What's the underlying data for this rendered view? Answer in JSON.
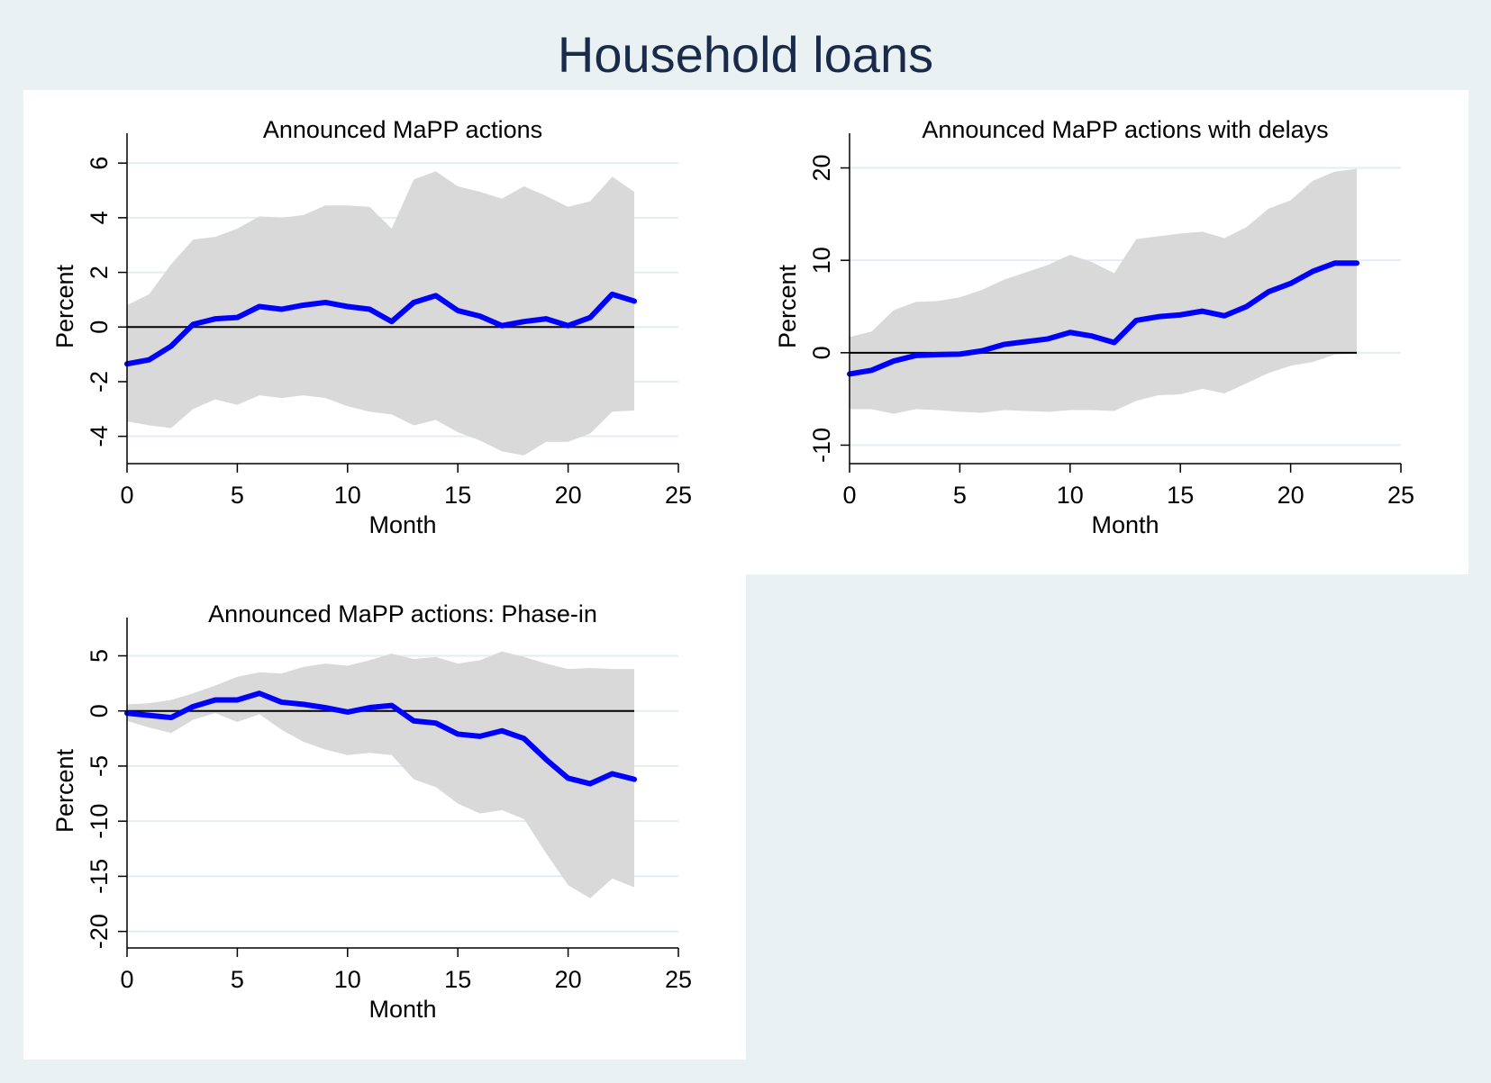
{
  "figure": {
    "title": "Household loans"
  },
  "chart_data": [
    {
      "type": "line",
      "title": "Announced MaPP actions",
      "xlabel": "Month",
      "ylabel": "Percent",
      "xlim": [
        0,
        25
      ],
      "ylim": [
        -5,
        6.5
      ],
      "xticks": [
        0,
        5,
        10,
        15,
        20,
        25
      ],
      "yticks": [
        -4,
        -2,
        0,
        2,
        4,
        6
      ],
      "ytick_labels": [
        "-4",
        "-2",
        "0",
        "2",
        "4",
        "6"
      ],
      "grid": true,
      "zero_line": true,
      "x": [
        0,
        1,
        2,
        3,
        4,
        5,
        6,
        7,
        8,
        9,
        10,
        11,
        12,
        13,
        14,
        15,
        16,
        17,
        18,
        19,
        20,
        21,
        22,
        23
      ],
      "series": [
        {
          "role": "estimate",
          "color": "#0000ff",
          "values": [
            -1.35,
            -1.2,
            -0.7,
            0.1,
            0.3,
            0.35,
            0.75,
            0.65,
            0.8,
            0.9,
            0.75,
            0.65,
            0.2,
            0.9,
            1.15,
            0.6,
            0.4,
            0.05,
            0.2,
            0.3,
            0.05,
            0.35,
            1.2,
            0.95
          ]
        },
        {
          "role": "upper",
          "color": "#d9d9d9",
          "values": [
            0.8,
            1.2,
            2.3,
            3.2,
            3.3,
            3.6,
            4.05,
            4.0,
            4.1,
            4.45,
            4.45,
            4.4,
            3.6,
            5.4,
            5.7,
            5.15,
            4.95,
            4.7,
            5.15,
            4.8,
            4.4,
            4.6,
            5.5,
            4.95
          ]
        },
        {
          "role": "lower",
          "color": "#d9d9d9",
          "values": [
            -3.45,
            -3.6,
            -3.7,
            -3.0,
            -2.65,
            -2.85,
            -2.5,
            -2.6,
            -2.5,
            -2.6,
            -2.9,
            -3.1,
            -3.2,
            -3.6,
            -3.4,
            -3.85,
            -4.15,
            -4.55,
            -4.7,
            -4.2,
            -4.2,
            -3.9,
            -3.1,
            -3.05
          ]
        }
      ]
    },
    {
      "type": "line",
      "title": "Announced MaPP actions with delays",
      "xlabel": "Month",
      "ylabel": "Percent",
      "xlim": [
        0,
        25
      ],
      "ylim": [
        -12,
        22
      ],
      "xticks": [
        0,
        5,
        10,
        15,
        20,
        25
      ],
      "yticks": [
        -10,
        0,
        10,
        20
      ],
      "ytick_labels": [
        "-10",
        "0",
        "10",
        "20"
      ],
      "grid": true,
      "zero_line": true,
      "x": [
        0,
        1,
        2,
        3,
        4,
        5,
        6,
        7,
        8,
        9,
        10,
        11,
        12,
        13,
        14,
        15,
        16,
        17,
        18,
        19,
        20,
        21,
        22,
        23
      ],
      "series": [
        {
          "role": "estimate",
          "color": "#0000ff",
          "values": [
            -2.3,
            -1.9,
            -0.9,
            -0.3,
            -0.2,
            -0.15,
            0.2,
            0.9,
            1.2,
            1.5,
            2.2,
            1.8,
            1.1,
            3.5,
            3.9,
            4.1,
            4.5,
            4.0,
            5.0,
            6.6,
            7.5,
            8.8,
            9.7,
            9.7
          ]
        },
        {
          "role": "upper",
          "color": "#d9d9d9",
          "values": [
            1.7,
            2.3,
            4.6,
            5.5,
            5.6,
            6.0,
            6.8,
            7.9,
            8.7,
            9.5,
            10.6,
            9.8,
            8.6,
            12.3,
            12.6,
            12.9,
            13.1,
            12.4,
            13.6,
            15.6,
            16.5,
            18.6,
            19.6,
            19.9
          ]
        },
        {
          "role": "lower",
          "color": "#d9d9d9",
          "values": [
            -6.1,
            -6.1,
            -6.6,
            -6.1,
            -6.2,
            -6.4,
            -6.5,
            -6.2,
            -6.3,
            -6.4,
            -6.2,
            -6.2,
            -6.3,
            -5.2,
            -4.6,
            -4.5,
            -3.9,
            -4.4,
            -3.3,
            -2.2,
            -1.4,
            -1.0,
            -0.2,
            -0.1
          ]
        }
      ]
    },
    {
      "type": "line",
      "title": "Announced MaPP actions: Phase-in",
      "xlabel": "Month",
      "ylabel": "Percent",
      "xlim": [
        0,
        25
      ],
      "ylim": [
        -21.5,
        7
      ],
      "xticks": [
        0,
        5,
        10,
        15,
        20,
        25
      ],
      "yticks": [
        -20,
        -15,
        -10,
        -5,
        0,
        5
      ],
      "ytick_labels": [
        "-20",
        "-15",
        "-10",
        "-5",
        "0",
        "5"
      ],
      "grid": true,
      "zero_line": true,
      "x": [
        0,
        1,
        2,
        3,
        4,
        5,
        6,
        7,
        8,
        9,
        10,
        11,
        12,
        13,
        14,
        15,
        16,
        17,
        18,
        19,
        20,
        21,
        22,
        23
      ],
      "series": [
        {
          "role": "estimate",
          "color": "#0000ff",
          "values": [
            -0.2,
            -0.4,
            -0.6,
            0.4,
            1.0,
            1.0,
            1.6,
            0.8,
            0.6,
            0.3,
            -0.1,
            0.3,
            0.5,
            -0.9,
            -1.1,
            -2.1,
            -2.3,
            -1.8,
            -2.5,
            -4.4,
            -6.1,
            -6.6,
            -5.7,
            -6.2
          ]
        },
        {
          "role": "upper",
          "color": "#d9d9d9",
          "values": [
            0.6,
            0.7,
            1.0,
            1.6,
            2.3,
            3.1,
            3.5,
            3.4,
            4.0,
            4.3,
            4.1,
            4.6,
            5.2,
            4.7,
            4.9,
            4.3,
            4.6,
            5.4,
            4.9,
            4.3,
            3.8,
            3.9,
            3.8,
            3.8
          ]
        },
        {
          "role": "lower",
          "color": "#d9d9d9",
          "values": [
            -0.9,
            -1.5,
            -2.0,
            -0.8,
            -0.2,
            -1.0,
            -0.3,
            -1.7,
            -2.8,
            -3.5,
            -4.0,
            -3.8,
            -4.0,
            -6.2,
            -6.9,
            -8.4,
            -9.3,
            -9.0,
            -9.8,
            -12.9,
            -15.8,
            -17.0,
            -15.2,
            -16.0
          ]
        }
      ]
    }
  ]
}
